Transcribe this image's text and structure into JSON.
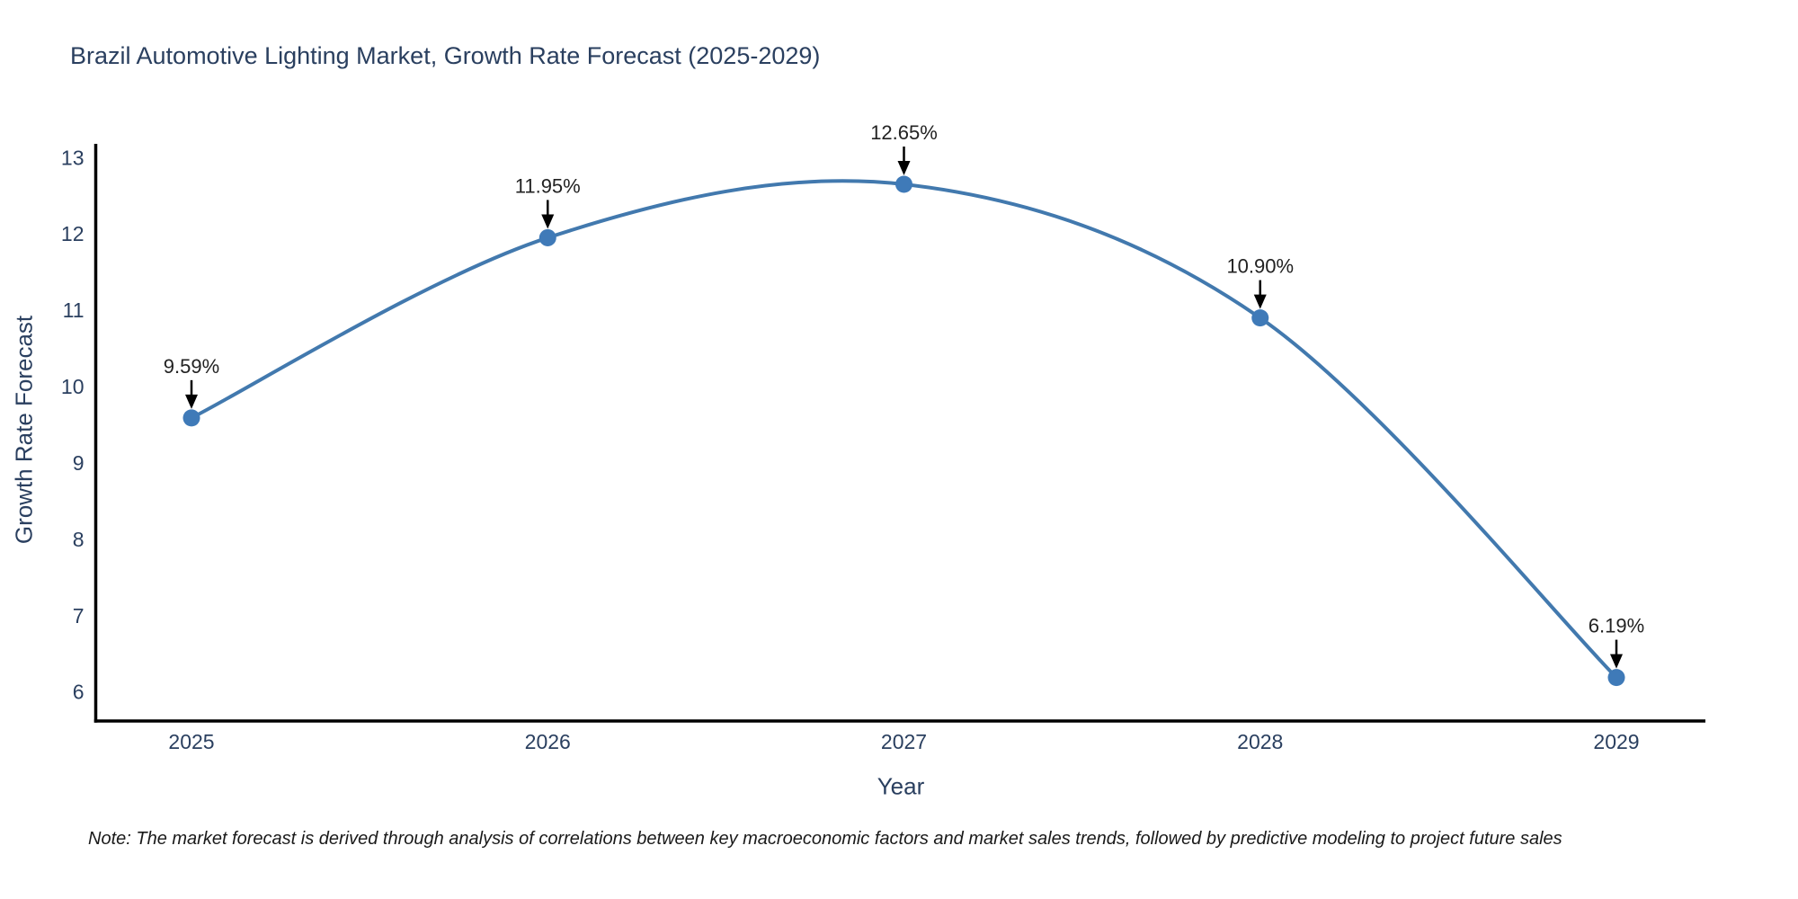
{
  "note": "Note: The market forecast is derived through analysis of correlations between key macroeconomic factors and market sales trends, followed by predictive modeling to project future sales",
  "colors": {
    "title": "#2a3f5f",
    "tick_labels": "#2a3f5f",
    "annotation_text": "#222222",
    "axis_line": "#000000",
    "series_line": "#4279ae",
    "marker_fill": "#3f7ab8",
    "background": "#ffffff",
    "note_text": "#1a1a1a"
  },
  "chart_data": {
    "type": "line",
    "title": "Brazil Automotive Lighting Market, Growth Rate Forecast (2025-2029)",
    "xlabel": "Year",
    "ylabel": "Growth Rate Forecast",
    "categories": [
      "2025",
      "2026",
      "2027",
      "2028",
      "2029"
    ],
    "values": [
      9.59,
      11.95,
      12.65,
      10.9,
      6.19
    ],
    "point_labels": [
      "9.59%",
      "11.95%",
      "12.65%",
      "10.90%",
      "6.19%"
    ],
    "y_ticks": [
      6,
      7,
      8,
      9,
      10,
      11,
      12,
      13
    ],
    "ylim": [
      5.62,
      13.18
    ],
    "grid": false,
    "legend_position": "none",
    "smooth": true,
    "annotations_have_arrows": true
  }
}
